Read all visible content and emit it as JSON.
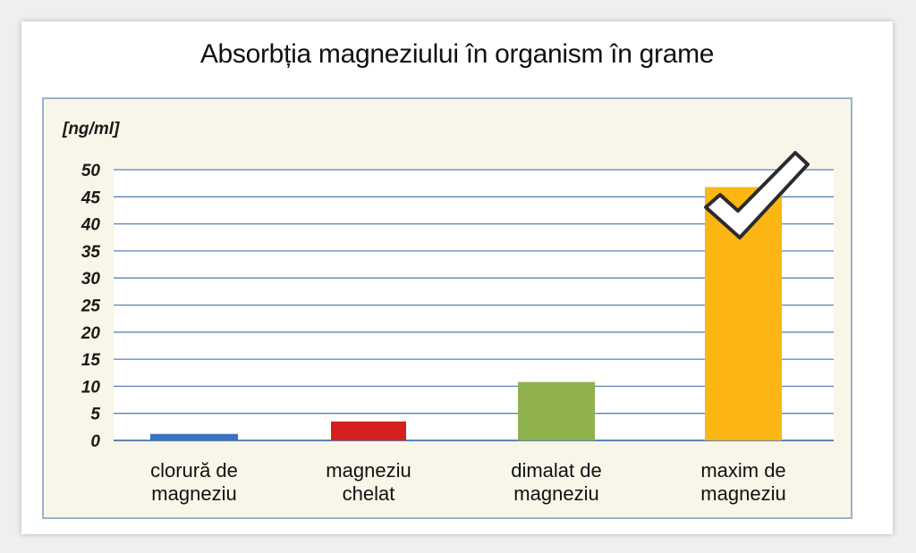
{
  "colors": {
    "panel_bg": "#f7f6e8",
    "plot_bg": "#ffffff",
    "grid": "#5b83b5",
    "bar_colors": [
      "#3b72c0",
      "#d4201e",
      "#8fb24f",
      "#fbb614"
    ]
  },
  "chart_data": {
    "type": "bar",
    "title": "Absorbția magneziului în organism în grame",
    "ylabel": "[ng/ml]",
    "xlabel": "",
    "ylim": [
      0,
      50
    ],
    "yticks": [
      0,
      5,
      10,
      15,
      20,
      25,
      30,
      35,
      40,
      45,
      50
    ],
    "categories": [
      [
        "clorură de",
        "magneziu"
      ],
      [
        "magneziu",
        "chelat"
      ],
      [
        "dimalat de",
        "magneziu"
      ],
      [
        "maxim de",
        "magneziu"
      ]
    ],
    "values": [
      1.2,
      3.5,
      10.8,
      46.8
    ],
    "grid": true,
    "highlight": {
      "category_index": 3,
      "icon": "checkmark-icon"
    }
  }
}
